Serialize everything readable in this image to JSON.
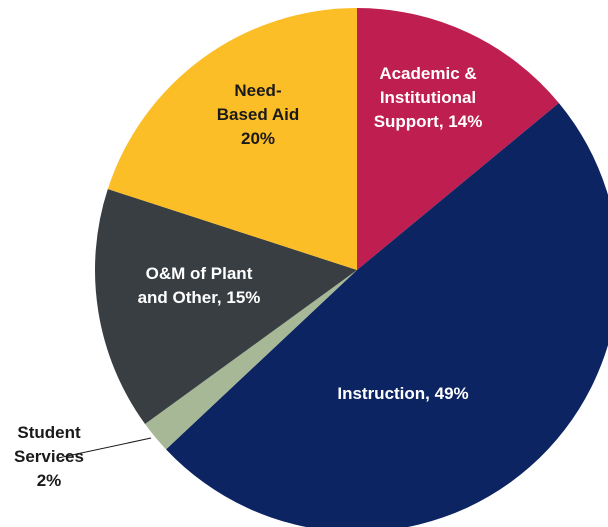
{
  "chart_data": {
    "type": "pie",
    "title": "",
    "slices": [
      {
        "name": "Academic & Institutional Support",
        "value": 14,
        "color": "#bf1e51",
        "label_lines": [
          "Academic &",
          "Institutional",
          "Support, 14%"
        ],
        "label_color": "#ffffff"
      },
      {
        "name": "Instruction",
        "value": 49,
        "color": "#0d2462",
        "label_lines": [
          "Instruction, 49%"
        ],
        "label_color": "#ffffff"
      },
      {
        "name": "Student Services",
        "value": 2,
        "color": "#a6b896",
        "label_lines": [
          "Student",
          "Services",
          "2%"
        ],
        "label_color": "#1a1a1a"
      },
      {
        "name": "O&M of Plant and Other",
        "value": 15,
        "color": "#383e42",
        "label_lines": [
          "O&M of Plant",
          "and Other, 15%"
        ],
        "label_color": "#ffffff"
      },
      {
        "name": "Need-Based Aid",
        "value": 20,
        "color": "#fcbe26",
        "label_lines": [
          "Need-",
          "Based Aid",
          "20%"
        ],
        "label_color": "#1a1a1a"
      }
    ],
    "start_angle_deg": 0,
    "direction": "clockwise"
  }
}
